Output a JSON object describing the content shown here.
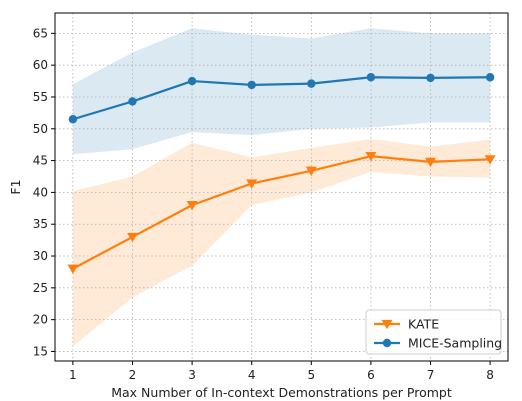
{
  "chart_data": {
    "type": "line",
    "xlabel": "Max Number of In-context Demonstrations per Prompt",
    "ylabel": "F1",
    "x": [
      1,
      2,
      3,
      4,
      5,
      6,
      7,
      8
    ],
    "xlim": [
      0.7,
      8.3
    ],
    "ylim": [
      13.5,
      68.2
    ],
    "xticks": [
      1,
      2,
      3,
      4,
      5,
      6,
      7,
      8
    ],
    "yticks": [
      15,
      20,
      25,
      30,
      35,
      40,
      45,
      50,
      55,
      60,
      65
    ],
    "grid": true,
    "legend_position": "bottom-right",
    "series": [
      {
        "name": "KATE",
        "color": "#ff7f0e",
        "marker": "triangle-down",
        "values": [
          28.0,
          33.0,
          38.0,
          41.4,
          43.4,
          45.7,
          44.8,
          45.2
        ],
        "band_lower": [
          15.8,
          23.5,
          28.5,
          38.0,
          40.0,
          43.2,
          42.5,
          42.3
        ],
        "band_upper": [
          40.2,
          42.5,
          47.8,
          45.5,
          47.0,
          48.4,
          47.2,
          48.3
        ]
      },
      {
        "name": "MICE-Sampling",
        "color": "#1f77b4",
        "marker": "circle",
        "values": [
          51.5,
          54.3,
          57.5,
          56.9,
          57.1,
          58.1,
          58.0,
          58.1
        ],
        "band_lower": [
          46.0,
          46.8,
          49.5,
          49.0,
          50.0,
          50.2,
          51.0,
          51.0
        ],
        "band_upper": [
          57.0,
          62.0,
          65.8,
          64.8,
          64.2,
          65.8,
          65.0,
          65.0
        ]
      }
    ]
  }
}
